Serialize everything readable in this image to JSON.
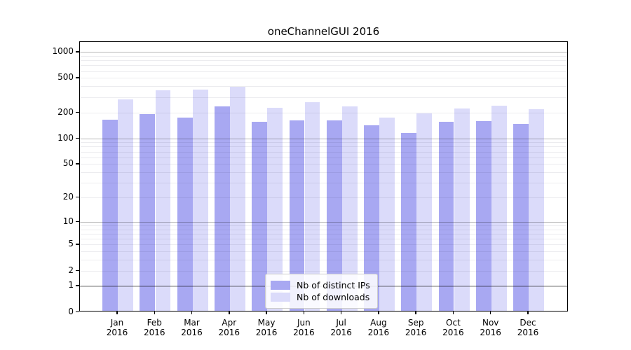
{
  "chart_data": {
    "type": "bar",
    "title": "oneChannelGUI 2016",
    "subtitle": "",
    "xlabel": "",
    "ylabel": "",
    "scale": "log10(1+x)",
    "ylim": [
      0,
      1300
    ],
    "grid": "major decades dark, log minors faint, drawn over bars",
    "legend_position": "lower center",
    "y_ticks": [
      0,
      1,
      2,
      5,
      10,
      20,
      50,
      100,
      200,
      500,
      1000
    ],
    "categories": [
      "Jan 2016",
      "Feb 2016",
      "Mar 2016",
      "Apr 2016",
      "May 2016",
      "Jun 2016",
      "Jul 2016",
      "Aug 2016",
      "Sep 2016",
      "Oct 2016",
      "Nov 2016",
      "Dec 2016"
    ],
    "x_months": [
      "Jan",
      "Feb",
      "Mar",
      "Apr",
      "May",
      "Jun",
      "Jul",
      "Aug",
      "Sep",
      "Oct",
      "Nov",
      "Dec"
    ],
    "x_year": "2016",
    "series": [
      {
        "name": "Nb of distinct IPs",
        "color": "#a8a8f2",
        "values": [
          158,
          185,
          170,
          228,
          150,
          157,
          156,
          136,
          112,
          150,
          155,
          142
        ]
      },
      {
        "name": "Nb of downloads",
        "color": "#dbdbfa",
        "values": [
          272,
          352,
          354,
          382,
          221,
          255,
          228,
          168,
          188,
          215,
          233,
          212
        ]
      }
    ]
  },
  "colors": {
    "background": "#ffffff",
    "spine": "#000000",
    "grid_major": "#b8b8b8",
    "grid_minor": "#e9e9ec",
    "legend_border": "#cccccc",
    "series_ips": "#a8a8f2",
    "series_downloads": "#dbdbfa"
  }
}
